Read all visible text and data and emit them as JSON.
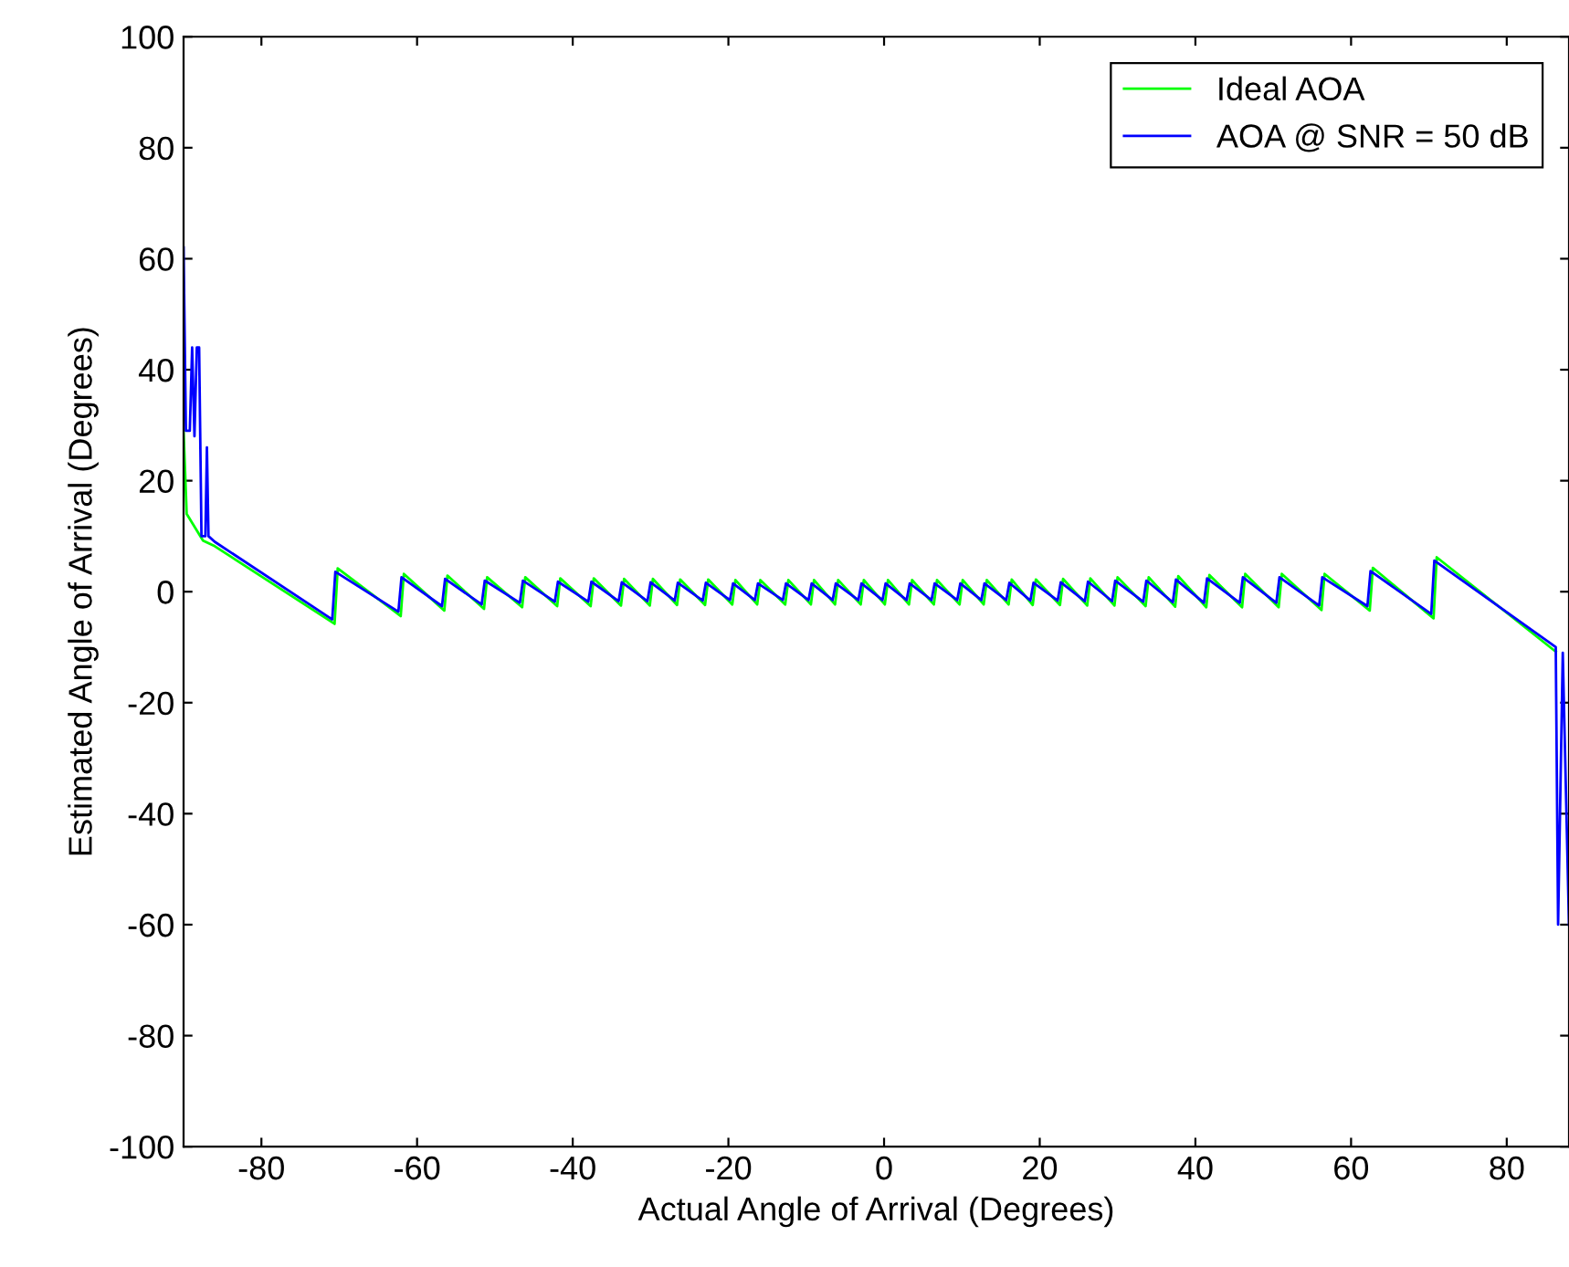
{
  "chart_data": {
    "type": "line",
    "xlabel": "Actual Angle of Arrival (Degrees)",
    "ylabel": "Estimated Angle of Arrival (Degrees)",
    "xlim": [
      -90,
      88
    ],
    "ylim": [
      -100,
      100
    ],
    "xticks": [
      -80,
      -60,
      -40,
      -20,
      0,
      20,
      40,
      60,
      80
    ],
    "yticks": [
      -100,
      -80,
      -60,
      -40,
      -20,
      0,
      20,
      40,
      60,
      80,
      100
    ],
    "grid": false,
    "legend": "top right",
    "marker": "none",
    "line_style": "solid",
    "series": [
      {
        "name": "Ideal AOA",
        "color": "#00ff00",
        "x": [
          -90,
          -89.6,
          -87.5,
          -86,
          -70.6,
          -70.2,
          -62.1,
          -61.7,
          -56.5,
          -56.1,
          -51.4,
          -51,
          -46.5,
          -46.1,
          -42,
          -41.6,
          -37.7,
          -37.3,
          -33.8,
          -33.4,
          -30.1,
          -29.7,
          -26.6,
          -26.2,
          -23,
          -22.6,
          -19.5,
          -19.1,
          -16.3,
          -15.9,
          -12.7,
          -12.3,
          -9.4,
          -9,
          -6.3,
          -5.9,
          -3,
          -2.6,
          0.1,
          0.5,
          3.2,
          3.6,
          6.4,
          6.8,
          9.7,
          10.1,
          12.8,
          13.2,
          16,
          16.4,
          19.1,
          19.5,
          22.6,
          23,
          26.1,
          26.5,
          29.6,
          30,
          33.6,
          34,
          37.4,
          37.8,
          41.4,
          41.8,
          46,
          46.4,
          50.7,
          51.1,
          56.2,
          56.6,
          62.4,
          62.8,
          70.6,
          71,
          86.3
        ],
        "values": [
          29,
          14,
          9.2,
          8.2,
          -5.8,
          4.2,
          -4.4,
          3.2,
          -3.4,
          2.9,
          -3.1,
          2.6,
          -2.8,
          2.6,
          -2.6,
          2.4,
          -2.6,
          2.4,
          -2.5,
          2.3,
          -2.5,
          2.3,
          -2.4,
          2.2,
          -2.4,
          2.2,
          -2.3,
          2.1,
          -2.3,
          2.1,
          -2.3,
          2.1,
          -2.3,
          2.1,
          -2.3,
          2.1,
          -2.3,
          2.1,
          -2.3,
          2.1,
          -2.3,
          2.1,
          -2.3,
          2.1,
          -2.3,
          2.1,
          -2.3,
          2.1,
          -2.3,
          2.2,
          -2.4,
          2.2,
          -2.4,
          2.3,
          -2.5,
          2.4,
          -2.5,
          2.6,
          -2.6,
          2.6,
          -2.7,
          2.8,
          -2.8,
          3,
          -2.8,
          3.2,
          -2.8,
          3.2,
          -3.3,
          3.2,
          -3.4,
          4.3,
          -4.8,
          6.2,
          -10.8
        ]
      },
      {
        "name": "AOA @ SNR = 50 dB",
        "color": "#0000ff",
        "x": [
          -90,
          -89.7,
          -89.2,
          -88.9,
          -88.6,
          -88.3,
          -88,
          -87.7,
          -87.2,
          -87,
          -86.8,
          -86,
          -70.9,
          -70.5,
          -62.4,
          -62,
          -56.8,
          -56.4,
          -51.7,
          -51.3,
          -46.8,
          -46.4,
          -42.3,
          -41.9,
          -38,
          -37.6,
          -34.1,
          -33.7,
          -30.4,
          -30,
          -26.9,
          -26.5,
          -23.3,
          -22.9,
          -19.8,
          -19.4,
          -16.6,
          -16.2,
          -13,
          -12.6,
          -9.7,
          -9.3,
          -6.6,
          -6.2,
          -3.3,
          -2.9,
          -0.2,
          0.2,
          2.9,
          3.3,
          6.1,
          6.5,
          9.4,
          9.8,
          12.5,
          12.9,
          15.7,
          16.1,
          18.8,
          19.2,
          22.3,
          22.7,
          25.8,
          26.2,
          29.3,
          29.7,
          33.3,
          33.7,
          37.1,
          37.5,
          41.1,
          41.5,
          45.7,
          46.1,
          50.4,
          50.8,
          55.9,
          56.3,
          62.1,
          62.5,
          70.3,
          70.7,
          86.3,
          86.6,
          87.2,
          88
        ],
        "values": [
          62,
          29,
          29,
          44,
          28,
          44,
          44,
          10,
          10,
          26,
          10,
          9,
          -5,
          3.6,
          -3.6,
          2.6,
          -2.6,
          2.3,
          -2.3,
          2,
          -2,
          2,
          -1.8,
          1.8,
          -1.8,
          1.8,
          -1.7,
          1.7,
          -1.7,
          1.7,
          -1.6,
          1.6,
          -1.6,
          1.6,
          -1.5,
          1.5,
          -1.5,
          1.5,
          -1.5,
          1.5,
          -1.5,
          1.5,
          -1.5,
          1.5,
          -1.5,
          1.5,
          -1.5,
          1.5,
          -1.5,
          1.5,
          -1.5,
          1.5,
          -1.5,
          1.5,
          -1.5,
          1.5,
          -1.5,
          1.6,
          -1.6,
          1.6,
          -1.6,
          1.7,
          -1.7,
          1.8,
          -1.7,
          2,
          -1.8,
          2,
          -1.9,
          2.2,
          -2,
          2.4,
          -2,
          2.6,
          -2,
          2.6,
          -2.5,
          2.6,
          -2.6,
          3.7,
          -4,
          5.6,
          -10,
          -60,
          -11,
          -60
        ]
      }
    ]
  }
}
